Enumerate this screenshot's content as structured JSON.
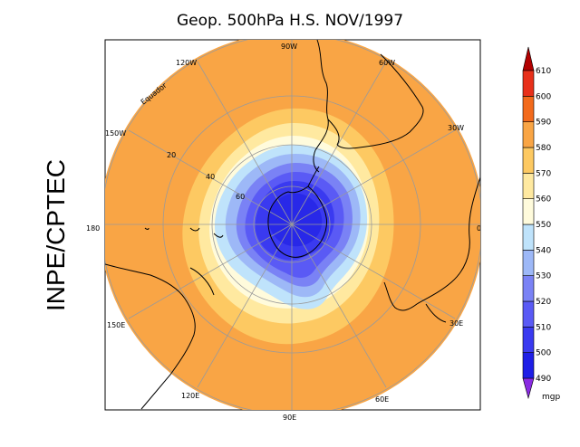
{
  "title": "Geop. 500hPa H.S. NOV/1997",
  "side_label": "INPE/CPTEC",
  "map": {
    "projection": "south polar stereographic",
    "longitude_labels": [
      "90W",
      "60W",
      "30W",
      "0",
      "30E",
      "60E",
      "90E",
      "120E",
      "150E",
      "180",
      "150W",
      "120W"
    ],
    "latitude_labels": [
      "20",
      "40",
      "60"
    ],
    "equator_label": "Equador"
  },
  "colorbar": {
    "unit": "mgp",
    "levels": [
      "490",
      "500",
      "510",
      "520",
      "530",
      "540",
      "550",
      "560",
      "570",
      "580",
      "590",
      "600",
      "610"
    ],
    "colors": [
      "#8a2be2",
      "#1e1ee6",
      "#3a3af0",
      "#5a5af5",
      "#7a82f5",
      "#9db8f7",
      "#bfe3fb",
      "#fffbdc",
      "#ffe9a0",
      "#fdc962",
      "#f9a545",
      "#f26a1c",
      "#e8301a",
      "#b20000"
    ]
  },
  "colors": {
    "ocean_orange": "#f9a545",
    "coast": "#000000",
    "grid": "#9a9a9a"
  }
}
